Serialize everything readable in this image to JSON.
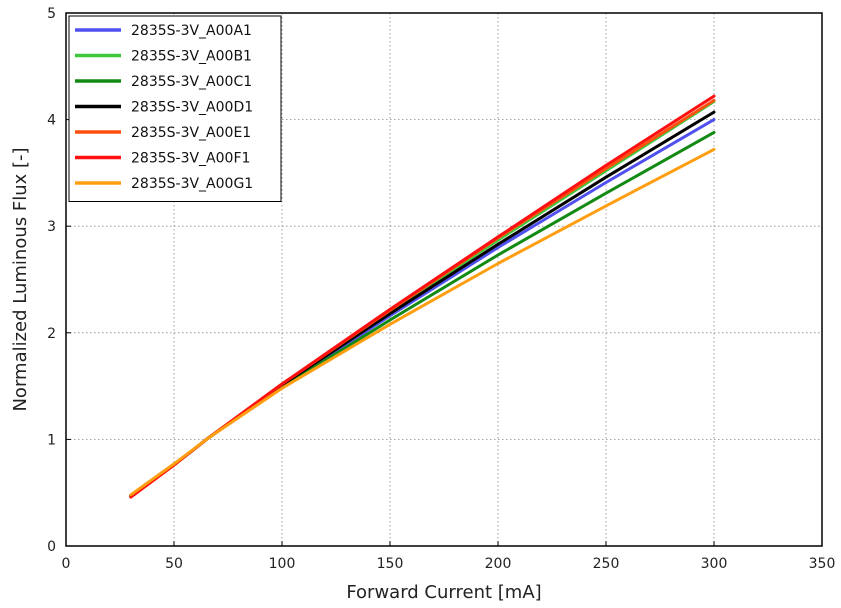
{
  "chart_data": {
    "type": "line",
    "title": "",
    "xlabel": "Forward Current [mA]",
    "ylabel": "Normalized Luminous Flux [-]",
    "xlim": [
      0,
      350
    ],
    "ylim": [
      0,
      5
    ],
    "xticks": [
      0,
      50,
      100,
      150,
      200,
      250,
      300,
      350
    ],
    "yticks": [
      0,
      1,
      2,
      3,
      4,
      5
    ],
    "grid": true,
    "legend_position": "top-left",
    "x": [
      30,
      50,
      65,
      100,
      150,
      200,
      250,
      300
    ],
    "series": [
      {
        "name": "2835S-3V_A00A1",
        "color": "#5050f0",
        "values": [
          0.47,
          0.76,
          1.0,
          1.5,
          2.16,
          2.8,
          3.41,
          4.0
        ]
      },
      {
        "name": "2835S-3V_A00B1",
        "color": "#3ec83e",
        "values": [
          0.47,
          0.76,
          1.0,
          1.51,
          2.2,
          2.87,
          3.52,
          4.17
        ]
      },
      {
        "name": "2835S-3V_A00C1",
        "color": "#138a13",
        "values": [
          0.47,
          0.76,
          1.0,
          1.49,
          2.12,
          2.73,
          3.31,
          3.88
        ]
      },
      {
        "name": "2835S-3V_A00D1",
        "color": "#000000",
        "values": [
          0.47,
          0.76,
          1.0,
          1.51,
          2.18,
          2.83,
          3.46,
          4.07
        ]
      },
      {
        "name": "2835S-3V_A00E1",
        "color": "#ff5010",
        "values": [
          0.46,
          0.76,
          1.0,
          1.52,
          2.21,
          2.89,
          3.54,
          4.18
        ]
      },
      {
        "name": "2835S-3V_A00F1",
        "color": "#ff1010",
        "values": [
          0.46,
          0.76,
          1.0,
          1.52,
          2.22,
          2.9,
          3.57,
          4.22
        ]
      },
      {
        "name": "2835S-3V_A00G1",
        "color": "#ff9e10",
        "values": [
          0.48,
          0.77,
          1.0,
          1.48,
          2.08,
          2.65,
          3.19,
          3.72
        ]
      }
    ]
  }
}
